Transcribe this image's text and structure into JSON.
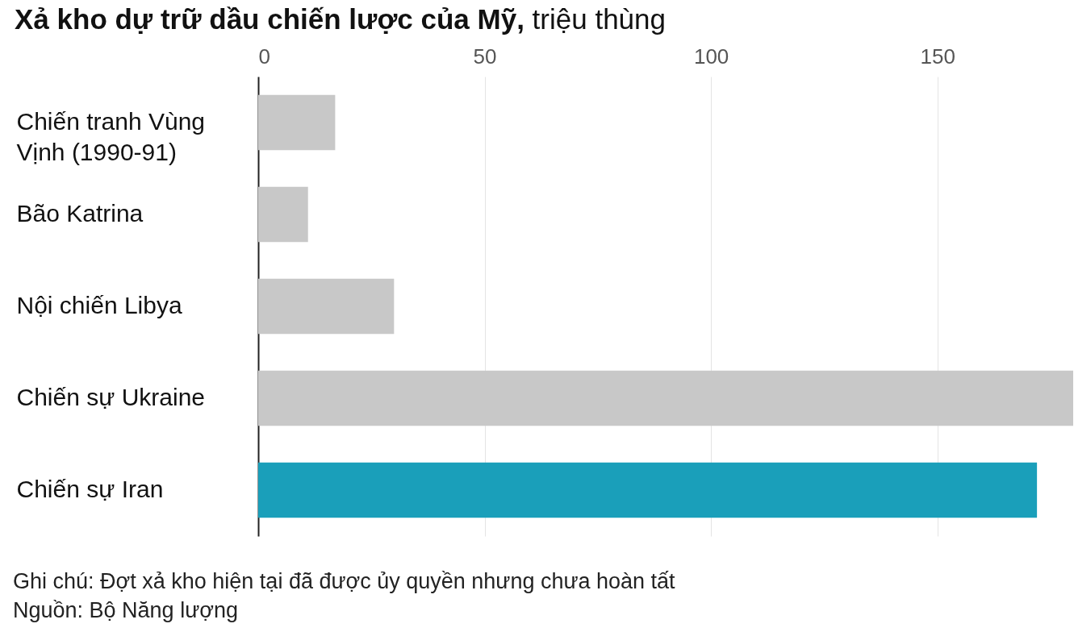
{
  "chart_data": {
    "type": "bar",
    "orientation": "horizontal",
    "title": "Xả kho dự trữ dầu chiến lược của Mỹ,",
    "xlabel": "triệu thùng",
    "categories": [
      "Chiến tranh Vùng Vịnh (1990-91)",
      "Bão Katrina",
      "Nội chiến Libya",
      "Chiến sự Ukraine",
      "Chiến sự Iran"
    ],
    "values": [
      17,
      11,
      30,
      180,
      172
    ],
    "colors": [
      "#c8c8c8",
      "#c8c8c8",
      "#c8c8c8",
      "#c8c8c8",
      "#1a9fba"
    ],
    "xlim": [
      0,
      180
    ],
    "xticks": [
      0,
      50,
      100,
      150
    ],
    "grid": "x",
    "annotations": [
      "Ghi chú: Đợt xả kho hiện tại đã được ủy quyền nhưng chưa hoàn tất",
      "Nguồn: Bộ Năng lượng"
    ]
  }
}
